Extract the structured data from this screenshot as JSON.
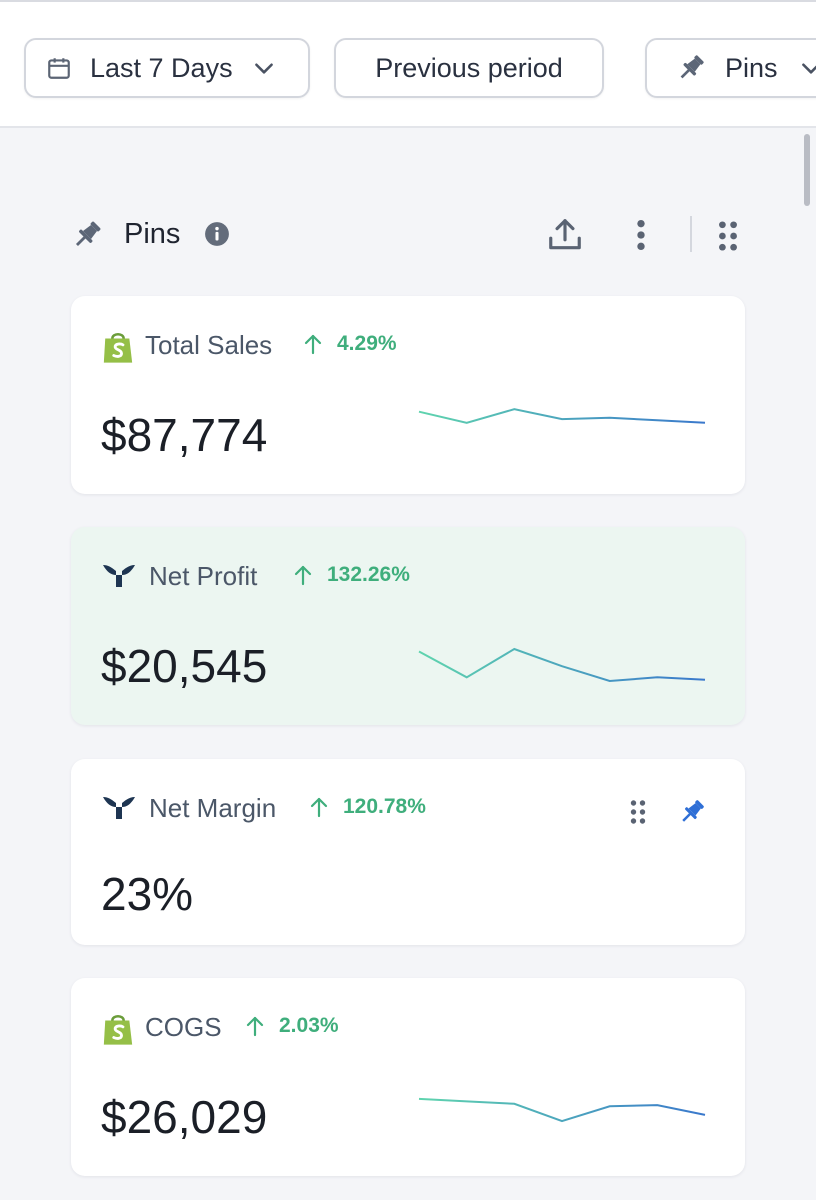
{
  "toolbar": {
    "date_range_label": "Last 7 Days",
    "compare_label": "Previous period",
    "pins_label": "Pins"
  },
  "section": {
    "title": "Pins"
  },
  "cards": [
    {
      "source": "shopify",
      "name": "Total Sales",
      "delta": "4.29%",
      "value": "$87,774",
      "trend": [
        0.9,
        0.0,
        1.1,
        0.3,
        0.4,
        0.2,
        0.0
      ]
    },
    {
      "source": "triple-whale",
      "name": "Net Profit",
      "delta": "132.26%",
      "value": "$20,545",
      "trend": [
        2.4,
        0.3,
        2.6,
        1.2,
        0.0,
        0.3,
        0.1
      ]
    },
    {
      "source": "triple-whale",
      "name": "Net Margin",
      "delta": "120.78%",
      "value": "23%"
    },
    {
      "source": "shopify",
      "name": "COGS",
      "delta": "2.03%",
      "value": "$26,029",
      "trend": [
        1.8,
        1.6,
        1.4,
        0.0,
        1.2,
        1.3,
        0.5
      ]
    }
  ],
  "colors": {
    "positive": "#3fae7c",
    "highlight_bg": "#ecf6f1",
    "pin_active": "#2f6fd6",
    "spark_start": "#5fd4ae",
    "spark_end": "#3a78cc"
  }
}
